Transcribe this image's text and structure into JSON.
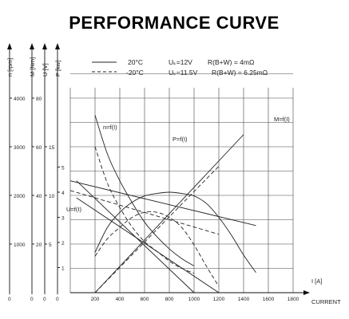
{
  "chart_data": {
    "type": "line",
    "title": "PERFORMANCE CURVE",
    "xlabel": "I [A]",
    "xlabel_caption": "CURRENT",
    "x_ticks": [
      "200",
      "400",
      "600",
      "800",
      "1000",
      "1200",
      "1400",
      "1600",
      "1800"
    ],
    "xlim": [
      0,
      1800
    ],
    "grid": true,
    "y_axes": [
      {
        "key": "n",
        "label": "n [rpm]",
        "ticks": [
          "1000",
          "2000",
          "3000",
          "4000"
        ],
        "tick_values": [
          1000,
          2000,
          3000,
          4000
        ]
      },
      {
        "key": "M",
        "label": "M [Nm]",
        "ticks": [
          "20",
          "40",
          "60",
          "80"
        ],
        "tick_values": [
          20,
          40,
          60,
          80
        ]
      },
      {
        "key": "U",
        "label": "U [V]",
        "ticks": [
          "5",
          "10",
          "15"
        ],
        "tick_values": [
          5,
          10,
          15
        ]
      },
      {
        "key": "P",
        "label": "P [kw]",
        "ticks": [
          "1",
          "2",
          "3",
          "4",
          "5"
        ],
        "tick_values": [
          1,
          2,
          3,
          4,
          5
        ]
      }
    ],
    "axis_zero_labels": [
      "0",
      "0",
      "0",
      "0"
    ],
    "legend": {
      "solid": {
        "temp": "20°C",
        "voltage": "Uₖ=12V",
        "resistance": "R(B+W) = 4mΩ"
      },
      "dashed": {
        "temp": "-20°C",
        "voltage": "Uₖ=11.5V",
        "resistance": "R(B+W) = 6.25mΩ"
      }
    },
    "curve_labels": {
      "n": "n=f(I)",
      "P": "P=f(I)",
      "U": "U=f(I)",
      "M": "M=f(I)"
    },
    "series": [
      {
        "name": "n=f(I)",
        "style": "solid",
        "axis": "n",
        "x": [
          200,
          300,
          400,
          500,
          600,
          700,
          800,
          900,
          1000
        ],
        "y": [
          3650,
          2850,
          2300,
          1850,
          1450,
          1150,
          900,
          700,
          550
        ]
      },
      {
        "name": "n=f(I)",
        "style": "dashed",
        "axis": "n",
        "x": [
          200,
          300,
          400,
          500,
          600,
          700,
          800,
          900,
          1000
        ],
        "y": [
          3000,
          2250,
          1750,
          1350,
          1050,
          850,
          650,
          500,
          400
        ]
      },
      {
        "name": "P=f(I)",
        "style": "solid",
        "axis": "P",
        "x": [
          200,
          300,
          400,
          500,
          600,
          700,
          800,
          900,
          1000,
          1100,
          1200,
          1300,
          1400,
          1500
        ],
        "y": [
          1.6,
          2.6,
          3.2,
          3.6,
          3.85,
          3.95,
          4.0,
          3.95,
          3.85,
          3.55,
          3.0,
          2.3,
          1.5,
          0.8
        ]
      },
      {
        "name": "P=f(I)",
        "style": "dashed",
        "axis": "P",
        "x": [
          200,
          300,
          400,
          500,
          600,
          700,
          800,
          900,
          1000,
          1100,
          1200
        ],
        "y": [
          1.45,
          2.15,
          2.6,
          3.0,
          3.2,
          3.2,
          3.0,
          2.6,
          1.9,
          1.05,
          0.25
        ]
      },
      {
        "name": "U=f(I)",
        "style": "solid",
        "axis": "U",
        "x": [
          0,
          1500
        ],
        "y": [
          11.5,
          6.9
        ]
      },
      {
        "name": "U=f(I)",
        "style": "dashed",
        "axis": "U",
        "x": [
          0,
          1200
        ],
        "y": [
          10.5,
          6.0
        ]
      },
      {
        "name": "M=f(I)",
        "style": "solid",
        "axis": "M",
        "x": [
          200,
          1400
        ],
        "y": [
          0,
          65
        ]
      },
      {
        "name": "M=f(I)",
        "style": "dashed",
        "axis": "M",
        "x": [
          200,
          1200
        ],
        "y": [
          0,
          52
        ]
      },
      {
        "name": "",
        "style": "solid",
        "axis": "M",
        "x": [
          50,
          1000
        ],
        "y": [
          46,
          0
        ]
      },
      {
        "name": "",
        "style": "solid",
        "axis": "M",
        "x": [
          50,
          1200
        ],
        "y": [
          39,
          0
        ]
      }
    ]
  }
}
